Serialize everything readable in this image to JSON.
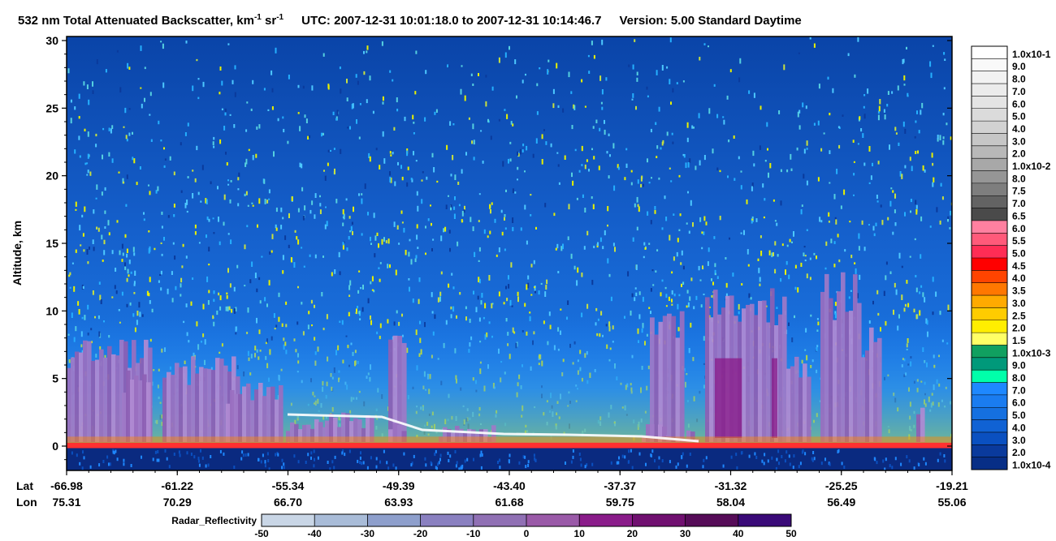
{
  "chart_data": {
    "type": "heatmap",
    "title": {
      "quantity": "532 nm Total Attenuated Backscatter, km",
      "unit_exp1": "-1",
      "unit_mid": " sr",
      "unit_exp2": "-1",
      "utc_text": "UTC:  2007-12-31 10:01:18.0  to  2007-12-31 10:14:46.7",
      "version_text": "Version: 5.00  Standard  Daytime"
    },
    "ylabel": "Altitude, km",
    "ylim": [
      -1.8,
      30.3
    ],
    "y_ticks": [
      "30",
      "25",
      "20",
      "15",
      "10",
      "5",
      "0"
    ],
    "x_row_labels": [
      "Lat",
      "Lon"
    ],
    "lat_ticks": [
      "-66.98",
      "-61.22",
      "-55.34",
      "-49.39",
      "-43.40",
      "-37.37",
      "-31.32",
      "-25.25",
      "-19.21"
    ],
    "lon_ticks": [
      "75.31",
      "70.29",
      "66.70",
      "63.93",
      "61.68",
      "59.75",
      "58.04",
      "56.49",
      "55.06"
    ],
    "colorbar": {
      "labels": [
        "1.0x10-1",
        "9.0",
        "8.0",
        "7.0",
        "6.0",
        "5.0",
        "4.0",
        "3.0",
        "2.0",
        "1.0x10-2",
        "8.0",
        "7.5",
        "7.0",
        "6.5",
        "6.0",
        "5.5",
        "5.0",
        "4.5",
        "4.0",
        "3.5",
        "3.0",
        "2.5",
        "2.0",
        "1.5",
        "1.0x10-3",
        "9.0",
        "8.0",
        "7.0",
        "6.0",
        "5.0",
        "4.0",
        "3.0",
        "2.0",
        "1.0x10-4"
      ],
      "colors": [
        "#ffffff",
        "#f9f9f9",
        "#f2f2f2",
        "#ebebeb",
        "#e4e4e4",
        "#dbdbdb",
        "#d2d2d2",
        "#c6c6c6",
        "#b8b8b8",
        "#a8a8a8",
        "#969696",
        "#7e7e7e",
        "#636363",
        "#4a4a4a",
        "#ff80a0",
        "#ff5a7a",
        "#ff2d55",
        "#ff0000",
        "#ff4400",
        "#ff7700",
        "#ffaa00",
        "#ffcc00",
        "#ffee00",
        "#ffff66",
        "#10a060",
        "#00997a",
        "#00ffaa",
        "#1e88ff",
        "#1a7cf0",
        "#1570e0",
        "#1062d4",
        "#0a50c0",
        "#0a3a9c",
        "#072e86"
      ]
    },
    "radar_bar": {
      "title": "Radar_Reflectivity",
      "ticks": [
        "-50",
        "-40",
        "-30",
        "-20",
        "-10",
        "0",
        "10",
        "20",
        "30",
        "40",
        "50"
      ],
      "colors": [
        "#c9d6e6",
        "#a9bcd8",
        "#8e9fcc",
        "#8a80c0",
        "#9070b4",
        "#9a5aa8",
        "#8a1c8a",
        "#701070",
        "#560c58",
        "#3a0a78"
      ]
    }
  }
}
